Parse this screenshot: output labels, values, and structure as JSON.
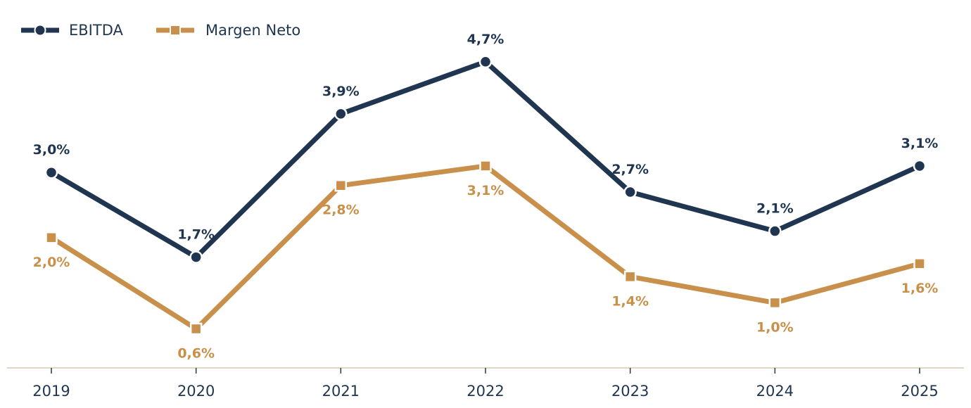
{
  "chart_data": {
    "type": "line",
    "categories": [
      "2019",
      "2020",
      "2021",
      "2022",
      "2023",
      "2024",
      "2025"
    ],
    "series": [
      {
        "name": "EBITDA",
        "values": [
          3.0,
          1.7,
          3.9,
          4.7,
          2.7,
          2.1,
          3.1
        ],
        "labels": [
          "3,0%",
          "1,7%",
          "3,9%",
          "4,7%",
          "2,7%",
          "2,1%",
          "3,1%"
        ],
        "color": "#1f3550",
        "marker": "circle",
        "label_position": "above"
      },
      {
        "name": "Margen Neto",
        "values": [
          2.0,
          0.6,
          2.8,
          3.1,
          1.4,
          1.0,
          1.6
        ],
        "labels": [
          "2,0%",
          "0,6%",
          "2,8%",
          "3,1%",
          "1,4%",
          "1,0%",
          "1,6%"
        ],
        "color": "#c8904a",
        "marker": "square",
        "label_position": "below"
      }
    ],
    "title": "",
    "xlabel": "",
    "ylabel": "",
    "ylim": [
      0,
      5.2
    ],
    "grid": false,
    "legend": "top-left",
    "axis_color": "#e3d6c6"
  }
}
